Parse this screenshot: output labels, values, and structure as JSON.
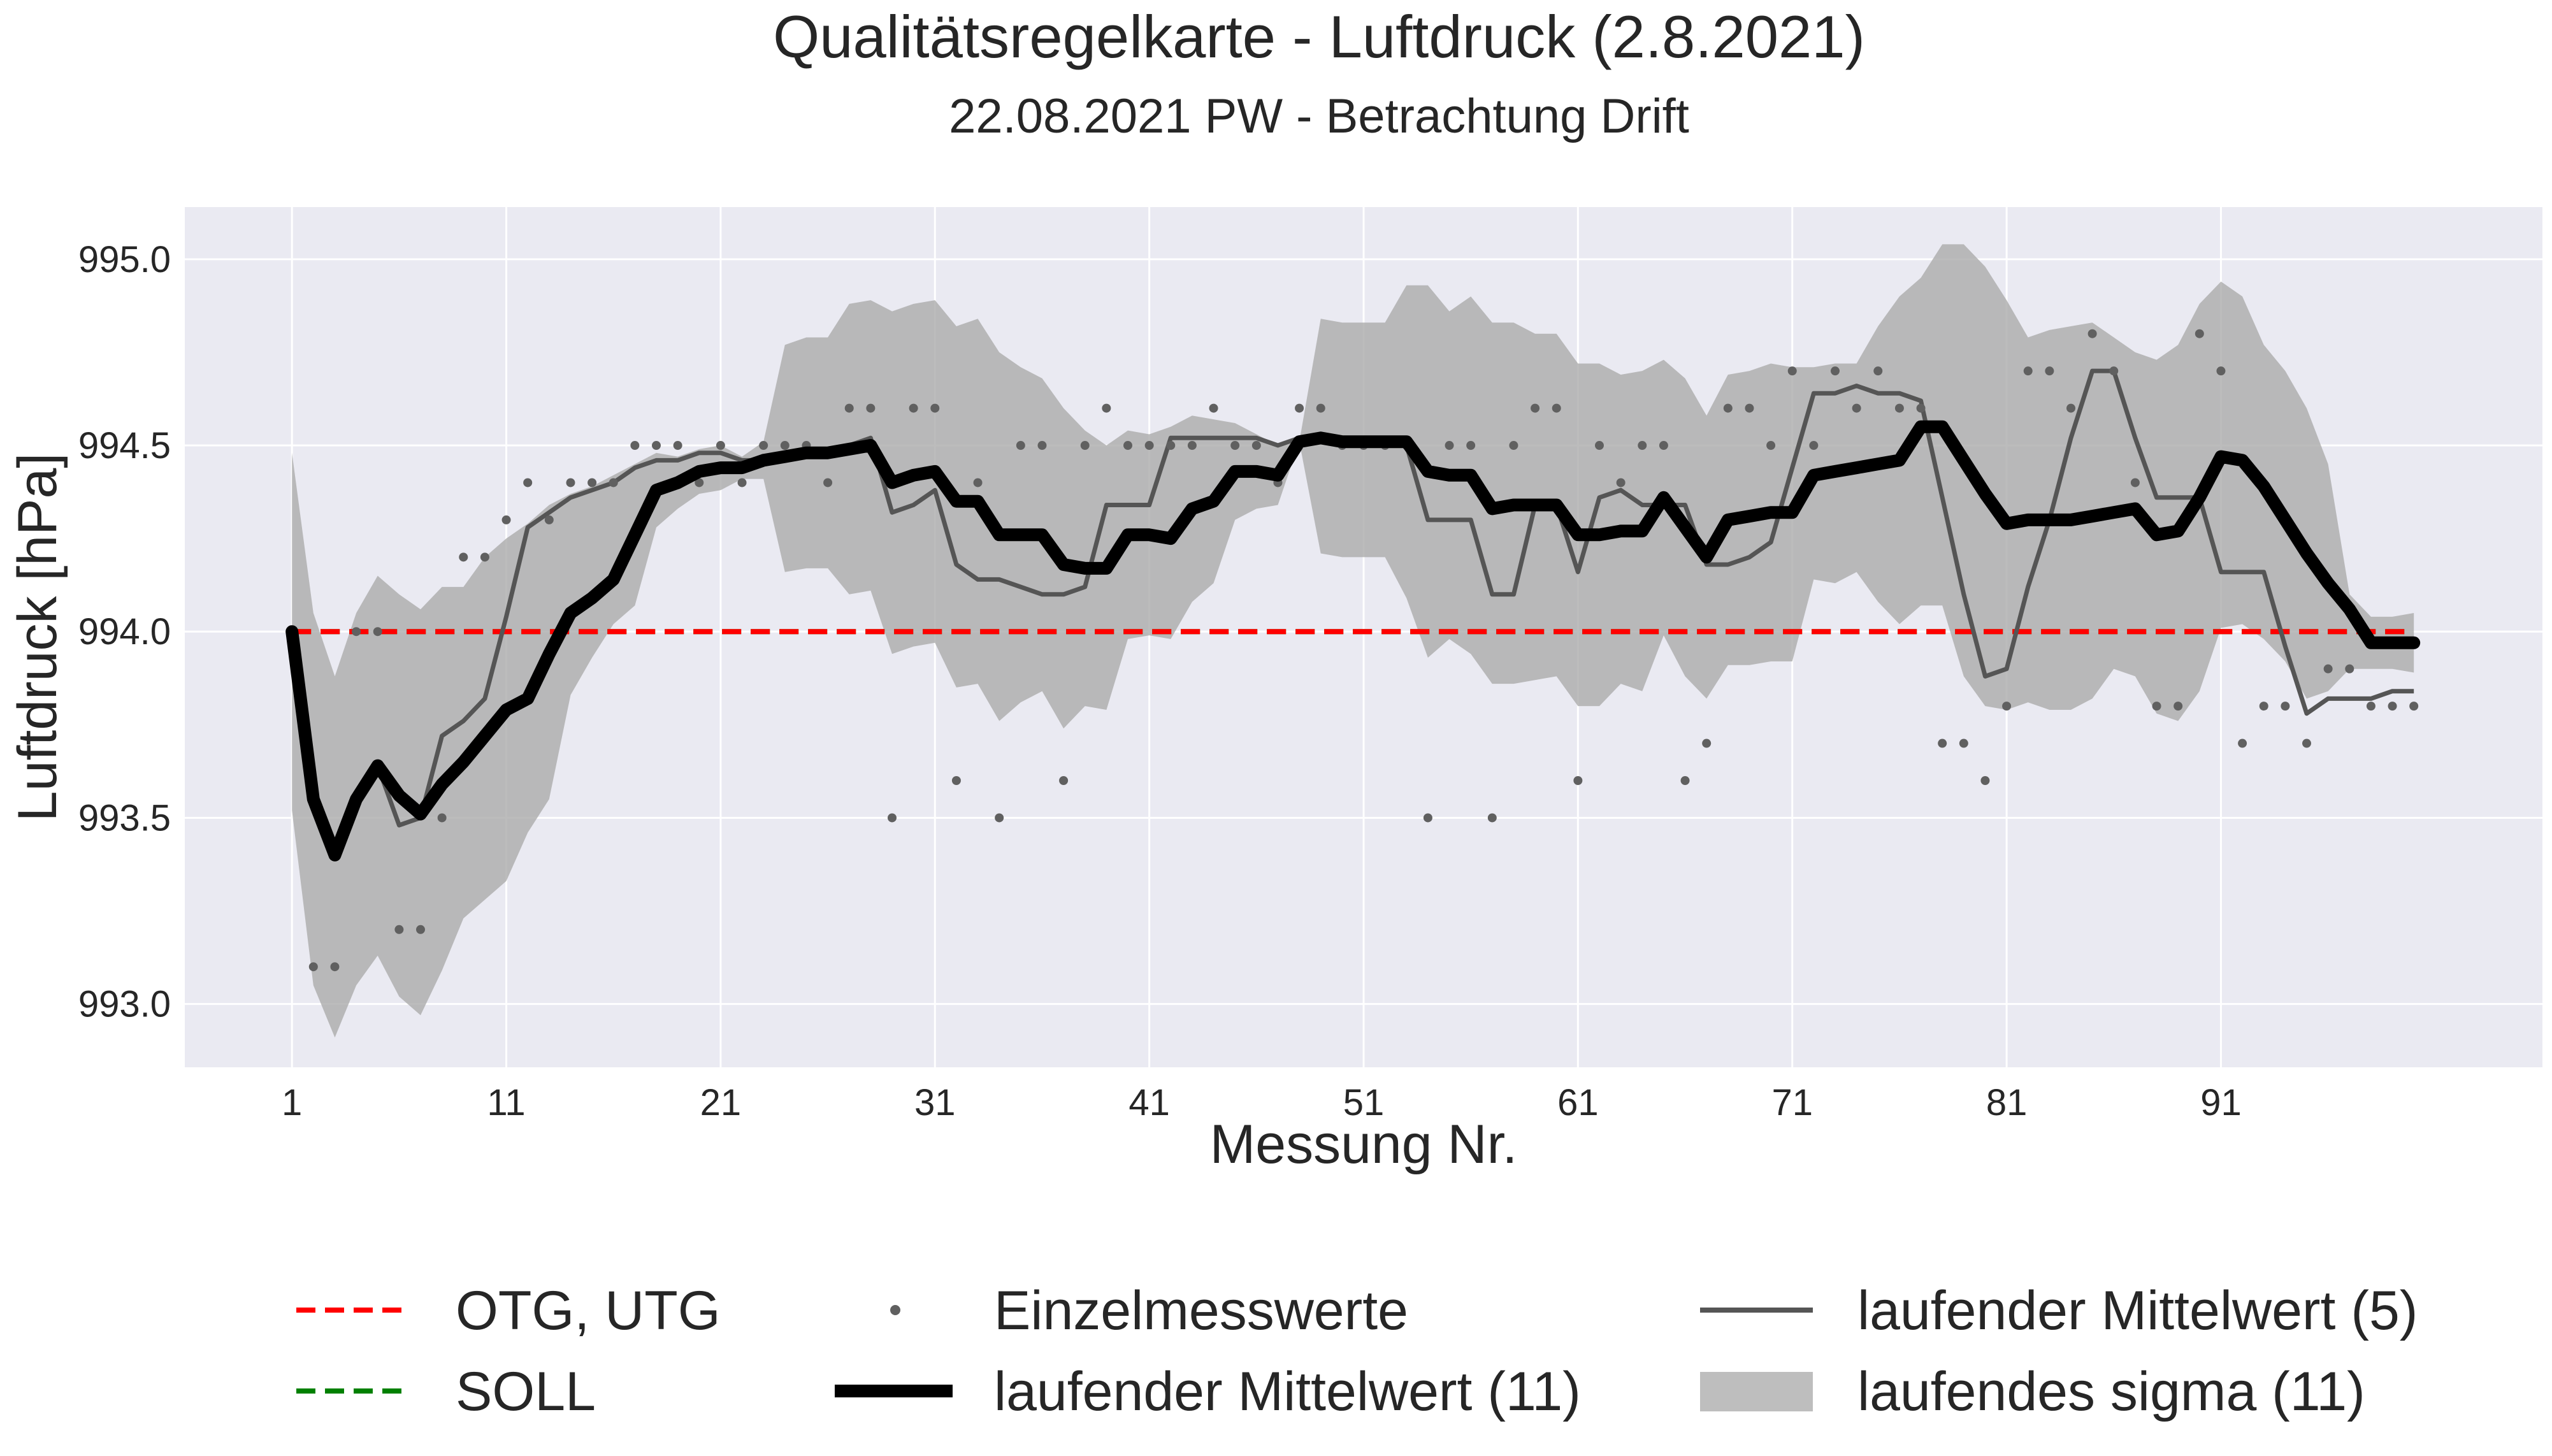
{
  "chart_data": {
    "type": "line",
    "title": "Qualitätsregelkarte - Luftdruck (2.8.2021)",
    "subtitle": "22.08.2021 PW - Betrachtung Drift",
    "xlabel": "Messung Nr.",
    "ylabel": "Luftdruck [hPa]",
    "xlim": [
      -4,
      106
    ],
    "ylim": [
      992.83,
      995.14
    ],
    "xticks": [
      1,
      11,
      21,
      31,
      41,
      51,
      61,
      71,
      81,
      91
    ],
    "xtick_labels": [
      "1",
      "11",
      "21",
      "31",
      "41",
      "51",
      "61",
      "71",
      "81",
      "91"
    ],
    "yticks": [
      993.0,
      993.5,
      994.0,
      994.5,
      995.0
    ],
    "ytick_labels": [
      "993.0",
      "993.5",
      "994.0",
      "994.5",
      "995.0"
    ],
    "grid": true,
    "legend_position": "bottom",
    "colors": {
      "background": "#eaeaf2",
      "grid": "#ffffff",
      "limit": "#ff0000",
      "soll": "#008000",
      "points": "#606060",
      "mean5": "#555555",
      "mean11": "#000000",
      "sigma": "#a9a9a9"
    },
    "limits": {
      "name": "OTG, UTG",
      "value": 994.0
    },
    "soll": {
      "name": "SOLL",
      "value": 994.0
    },
    "series": [
      {
        "name": "Einzelmesswerte",
        "kind": "scatter",
        "x": [
          2,
          3,
          4,
          5,
          6,
          7,
          8,
          9,
          10,
          11,
          12,
          13,
          14,
          15,
          16,
          17,
          18,
          19,
          20,
          21,
          22,
          23,
          24,
          25,
          26,
          27,
          28,
          29,
          30,
          31,
          32,
          33,
          34,
          35,
          36,
          37,
          38,
          39,
          40,
          41,
          42,
          43,
          44,
          45,
          46,
          47,
          48,
          49,
          50,
          51,
          52,
          53,
          54,
          55,
          56,
          57,
          58,
          59,
          60,
          61,
          62,
          63,
          64,
          65,
          66,
          67,
          68,
          69,
          70,
          71,
          72,
          73,
          74,
          75,
          76,
          77,
          78,
          79,
          80,
          81,
          82,
          83,
          84,
          85,
          86,
          87,
          88,
          89,
          90,
          91,
          92,
          93,
          94,
          95,
          96,
          97,
          98,
          99,
          100
        ],
        "values": [
          993.1,
          993.1,
          994.0,
          994.0,
          993.2,
          993.2,
          993.5,
          994.2,
          994.2,
          994.3,
          994.4,
          994.3,
          994.4,
          994.4,
          994.4,
          994.5,
          994.5,
          994.5,
          994.4,
          994.5,
          994.4,
          994.5,
          994.5,
          994.5,
          994.4,
          994.6,
          994.6,
          993.5,
          994.6,
          994.6,
          993.6,
          994.4,
          993.5,
          994.5,
          994.5,
          993.6,
          994.5,
          994.6,
          994.5,
          994.5,
          994.5,
          994.5,
          994.6,
          994.5,
          994.5,
          994.4,
          994.6,
          994.6,
          994.5,
          994.5,
          994.5,
          994.5,
          993.5,
          994.5,
          994.5,
          993.5,
          994.5,
          994.6,
          994.6,
          993.6,
          994.5,
          994.4,
          994.5,
          994.5,
          993.6,
          993.7,
          994.6,
          994.6,
          994.5,
          994.7,
          994.5,
          994.7,
          994.6,
          994.7,
          994.6,
          994.6,
          993.7,
          993.7,
          993.6,
          993.8,
          994.7,
          994.7,
          994.6,
          994.8,
          994.7,
          994.4,
          993.8,
          993.8,
          994.8,
          994.7,
          993.7,
          993.8,
          993.8,
          993.7,
          993.9,
          993.9,
          993.8,
          993.8,
          993.8
        ]
      },
      {
        "name": "laufender Mittelwert (5)",
        "kind": "line",
        "x": [
          1,
          2,
          3,
          4,
          5,
          6,
          7,
          8,
          9,
          10,
          11,
          12,
          13,
          14,
          15,
          16,
          17,
          18,
          19,
          20,
          21,
          22,
          23,
          24,
          25,
          26,
          27,
          28,
          29,
          30,
          31,
          32,
          33,
          34,
          35,
          36,
          37,
          38,
          39,
          40,
          41,
          42,
          43,
          44,
          45,
          46,
          47,
          48,
          49,
          50,
          51,
          52,
          53,
          54,
          55,
          56,
          57,
          58,
          59,
          60,
          61,
          62,
          63,
          64,
          65,
          66,
          67,
          68,
          69,
          70,
          71,
          72,
          73,
          74,
          75,
          76,
          77,
          78,
          79,
          80,
          81,
          82,
          83,
          84,
          85,
          86,
          87,
          88,
          89,
          90,
          91,
          92,
          93,
          94,
          95,
          96,
          97,
          98,
          99,
          100
        ],
        "values": [
          994.0,
          993.55,
          993.4,
          993.55,
          993.64,
          993.48,
          993.5,
          993.72,
          993.76,
          993.82,
          994.04,
          994.28,
          994.32,
          994.36,
          994.38,
          994.4,
          994.44,
          994.46,
          994.46,
          994.48,
          994.48,
          994.46,
          994.46,
          994.48,
          994.48,
          994.48,
          994.5,
          994.52,
          994.32,
          994.34,
          994.38,
          994.18,
          994.14,
          994.14,
          994.12,
          994.1,
          994.1,
          994.12,
          994.34,
          994.34,
          994.34,
          994.52,
          994.52,
          994.52,
          994.52,
          994.52,
          994.5,
          994.52,
          994.52,
          994.52,
          994.5,
          994.5,
          994.5,
          994.3,
          994.3,
          994.3,
          994.1,
          994.1,
          994.34,
          994.34,
          994.16,
          994.36,
          994.38,
          994.34,
          994.34,
          994.34,
          994.18,
          994.18,
          994.2,
          994.24,
          994.44,
          994.64,
          994.64,
          994.66,
          994.64,
          994.64,
          994.62,
          994.36,
          994.1,
          993.88,
          993.9,
          994.12,
          994.3,
          994.52,
          994.7,
          994.7,
          994.52,
          994.36,
          994.36,
          994.36,
          994.16,
          994.16,
          994.16,
          993.96,
          993.78,
          993.82,
          993.82,
          993.82,
          993.84,
          993.84
        ]
      },
      {
        "name": "laufender Mittelwert (11)",
        "kind": "line",
        "x": [
          1,
          2,
          3,
          4,
          5,
          6,
          7,
          8,
          9,
          10,
          11,
          12,
          13,
          14,
          15,
          16,
          17,
          18,
          19,
          20,
          21,
          22,
          23,
          24,
          25,
          26,
          27,
          28,
          29,
          30,
          31,
          32,
          33,
          34,
          35,
          36,
          37,
          38,
          39,
          40,
          41,
          42,
          43,
          44,
          45,
          46,
          47,
          48,
          49,
          50,
          51,
          52,
          53,
          54,
          55,
          56,
          57,
          58,
          59,
          60,
          61,
          62,
          63,
          64,
          65,
          66,
          67,
          68,
          69,
          70,
          71,
          72,
          73,
          74,
          75,
          76,
          77,
          78,
          79,
          80,
          81,
          82,
          83,
          84,
          85,
          86,
          87,
          88,
          89,
          90,
          91,
          92,
          93,
          94,
          95,
          96,
          97,
          98,
          99,
          100
        ],
        "values": [
          994.0,
          993.55,
          993.4,
          993.55,
          993.64,
          993.56,
          993.51,
          993.59,
          993.65,
          993.72,
          993.79,
          993.82,
          993.94,
          994.05,
          994.09,
          994.14,
          994.26,
          994.38,
          994.4,
          994.43,
          994.44,
          994.44,
          994.46,
          994.47,
          994.48,
          994.48,
          994.49,
          994.5,
          994.4,
          994.42,
          994.43,
          994.35,
          994.35,
          994.26,
          994.26,
          994.26,
          994.18,
          994.17,
          994.17,
          994.26,
          994.26,
          994.25,
          994.33,
          994.35,
          994.43,
          994.43,
          994.42,
          994.51,
          994.52,
          994.51,
          994.51,
          994.51,
          994.51,
          994.43,
          994.42,
          994.42,
          994.33,
          994.34,
          994.34,
          994.34,
          994.26,
          994.26,
          994.27,
          994.27,
          994.36,
          994.28,
          994.2,
          994.3,
          994.31,
          994.32,
          994.32,
          994.42,
          994.43,
          994.44,
          994.45,
          994.46,
          994.55,
          994.55,
          994.46,
          994.37,
          994.29,
          994.3,
          994.3,
          994.3,
          994.31,
          994.32,
          994.33,
          994.26,
          994.27,
          994.36,
          994.47,
          994.46,
          994.39,
          994.3,
          994.21,
          994.13,
          994.06,
          993.97,
          993.97,
          993.97
        ]
      },
      {
        "name": "laufendes sigma (11)",
        "kind": "band",
        "x": [
          1,
          2,
          3,
          4,
          5,
          6,
          7,
          8,
          9,
          10,
          11,
          12,
          13,
          14,
          15,
          16,
          17,
          18,
          19,
          20,
          21,
          22,
          23,
          24,
          25,
          26,
          27,
          28,
          29,
          30,
          31,
          32,
          33,
          34,
          35,
          36,
          37,
          38,
          39,
          40,
          41,
          42,
          43,
          44,
          45,
          46,
          47,
          48,
          49,
          50,
          51,
          52,
          53,
          54,
          55,
          56,
          57,
          58,
          59,
          60,
          61,
          62,
          63,
          64,
          65,
          66,
          67,
          68,
          69,
          70,
          71,
          72,
          73,
          74,
          75,
          76,
          77,
          78,
          79,
          80,
          81,
          82,
          83,
          84,
          85,
          86,
          87,
          88,
          89,
          90,
          91,
          92,
          93,
          94,
          95,
          96,
          97,
          98,
          99,
          100
        ],
        "upper": [
          994.48,
          994.05,
          993.88,
          994.05,
          994.15,
          994.1,
          994.06,
          994.12,
          994.12,
          994.2,
          994.25,
          994.29,
          994.34,
          994.37,
          994.39,
          994.42,
          994.45,
          994.48,
          994.47,
          994.49,
          994.5,
          994.47,
          994.51,
          994.77,
          994.79,
          994.79,
          994.88,
          994.89,
          994.86,
          994.88,
          994.89,
          994.82,
          994.84,
          994.75,
          994.71,
          994.68,
          994.6,
          994.54,
          994.5,
          994.54,
          994.53,
          994.55,
          994.58,
          994.57,
          994.56,
          994.53,
          994.5,
          994.51,
          994.84,
          994.83,
          994.83,
          994.83,
          994.93,
          994.93,
          994.86,
          994.9,
          994.83,
          994.83,
          994.8,
          994.8,
          994.72,
          994.72,
          994.69,
          994.7,
          994.73,
          994.68,
          994.58,
          994.69,
          994.7,
          994.72,
          994.71,
          994.71,
          994.72,
          994.72,
          994.82,
          994.9,
          994.95,
          995.04,
          995.04,
          994.98,
          994.89,
          994.79,
          994.81,
          994.82,
          994.83,
          994.79,
          994.75,
          994.73,
          994.77,
          994.88,
          994.94,
          994.9,
          994.77,
          994.7,
          994.6,
          994.45,
          994.1,
          994.04,
          994.04,
          994.05
        ],
        "lower": [
          993.52,
          993.05,
          992.91,
          993.05,
          993.13,
          993.02,
          992.97,
          993.09,
          993.23,
          993.28,
          993.33,
          993.46,
          993.55,
          993.83,
          993.93,
          994.02,
          994.07,
          994.28,
          994.33,
          994.37,
          994.38,
          994.41,
          994.41,
          994.16,
          994.17,
          994.17,
          994.1,
          994.11,
          993.94,
          993.96,
          993.97,
          993.85,
          993.86,
          993.76,
          993.81,
          993.84,
          993.74,
          993.8,
          993.79,
          993.98,
          993.99,
          993.98,
          994.08,
          994.13,
          994.3,
          994.33,
          994.34,
          994.51,
          994.21,
          994.2,
          994.2,
          994.2,
          994.09,
          993.93,
          993.98,
          993.94,
          993.86,
          993.86,
          993.87,
          993.88,
          993.8,
          993.8,
          993.86,
          993.84,
          993.99,
          993.88,
          993.82,
          993.91,
          993.91,
          993.92,
          993.92,
          994.14,
          994.13,
          994.16,
          994.08,
          994.02,
          994.07,
          994.07,
          993.88,
          993.8,
          993.79,
          993.81,
          993.79,
          993.79,
          993.82,
          993.9,
          993.88,
          993.78,
          993.76,
          993.84,
          994.01,
          994.02,
          993.98,
          993.92,
          993.82,
          993.84,
          993.9,
          993.9,
          993.9,
          993.89
        ]
      }
    ]
  }
}
